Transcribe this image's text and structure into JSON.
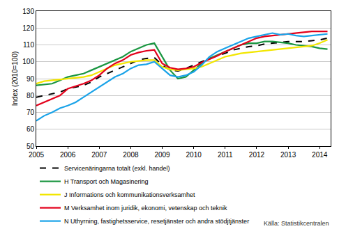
{
  "chart_data": {
    "type": "line",
    "y_label": "Index (2010=100)",
    "x": [
      2005,
      2005.25,
      2005.5,
      2005.75,
      2006,
      2006.25,
      2006.5,
      2006.75,
      2007,
      2007.25,
      2007.5,
      2007.75,
      2008,
      2008.25,
      2008.5,
      2008.75,
      2009,
      2009.25,
      2009.5,
      2009.75,
      2010,
      2010.25,
      2010.5,
      2010.75,
      2011,
      2011.25,
      2011.5,
      2011.75,
      2012,
      2012.25,
      2012.5,
      2012.75,
      2013,
      2013.25,
      2013.5,
      2013.75,
      2014,
      2014.25
    ],
    "xlim": [
      2005,
      2014.35
    ],
    "xticks": [
      2005,
      2006,
      2007,
      2008,
      2009,
      2010,
      2011,
      2012,
      2013,
      2014
    ],
    "ylim": [
      50,
      130
    ],
    "yticks": [
      50,
      60,
      70,
      80,
      90,
      100,
      110,
      120,
      130
    ],
    "grid": true,
    "legend": "bottom",
    "series": [
      {
        "name": "Servicenäringarna totalt (exkl. handel)",
        "color": "#000000",
        "line_style": "dashed",
        "values": [
          79,
          80,
          81,
          82,
          84,
          85,
          86,
          88,
          91,
          93,
          95,
          97,
          99,
          101,
          102,
          102.5,
          98,
          95,
          94.5,
          96,
          98,
          100,
          102,
          103.5,
          105,
          107,
          108,
          109,
          109.5,
          110.5,
          111,
          111.5,
          112,
          112,
          112,
          112.5,
          113,
          114
        ]
      },
      {
        "name": "H Transport och Magasinering",
        "color": "#1a9641",
        "line_style": "solid",
        "values": [
          86,
          86.5,
          87,
          89,
          91,
          92,
          93,
          95,
          97,
          99,
          101,
          103,
          106,
          108,
          110,
          111,
          103,
          95,
          90,
          91,
          95,
          99,
          102,
          104,
          106,
          108,
          110,
          111,
          111,
          112,
          112,
          111.5,
          111,
          110,
          109.5,
          109,
          108,
          107.5
        ]
      },
      {
        "name": "J Informations och kommunikationsverksamhet",
        "color": "#f2e600",
        "line_style": "solid",
        "values": [
          87,
          88.5,
          89,
          89.5,
          90,
          90.5,
          91,
          92,
          94,
          96,
          98,
          99,
          100,
          100.5,
          101,
          101,
          97,
          95.5,
          95,
          95.5,
          96,
          97,
          99,
          101,
          103,
          104,
          105,
          105.5,
          106,
          106.5,
          107,
          107.5,
          108,
          108.5,
          109,
          109.5,
          111,
          113
        ]
      },
      {
        "name": "M Verksamhet inom juridik, ekonomi, vetenskap och teknik",
        "color": "#e3001b",
        "line_style": "solid",
        "values": [
          74,
          76,
          78,
          80,
          84,
          85.5,
          87,
          89,
          92,
          96,
          99,
          101,
          104,
          105.5,
          106.5,
          107,
          99,
          96.5,
          95.5,
          96,
          97,
          99.5,
          101.5,
          103.5,
          106,
          108,
          110,
          112,
          114,
          115,
          115.5,
          116,
          116.5,
          117,
          117.5,
          118,
          118,
          118
        ]
      },
      {
        "name": "N Uthyrning, fastighetsservice, resetjänster och andra stödjtjänster",
        "color": "#1aa3e8",
        "line_style": "solid",
        "values": [
          65,
          68,
          70,
          72.5,
          74,
          76,
          79,
          82,
          85,
          88,
          91,
          93,
          96,
          98,
          98.5,
          100,
          96,
          92,
          91,
          92,
          94,
          98,
          103,
          106,
          108,
          110,
          112,
          114,
          115,
          116,
          117,
          116,
          116.5,
          115.5,
          115,
          115.5,
          116,
          116.5
        ]
      }
    ],
    "annotations": [
      {
        "text": "Källa: Statistikcentralen"
      }
    ]
  }
}
